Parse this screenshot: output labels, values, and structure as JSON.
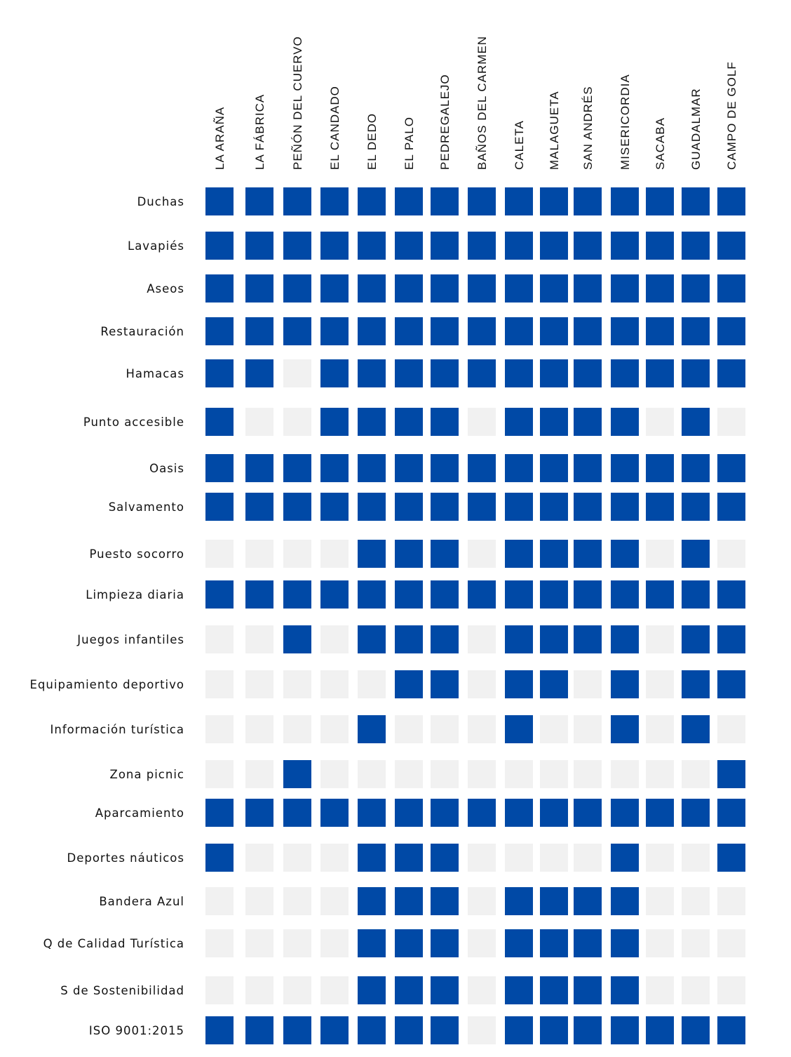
{
  "chart_data": {
    "type": "heatmap",
    "title": "",
    "columns": [
      "LA ARAÑA",
      "LA FÁBRICA",
      "PEÑÓN DEL CUERVO",
      "EL CANDADO",
      "EL DEDO",
      "EL PALO",
      "PEDREGALEJO",
      "BAÑOS DEL CARMEN",
      "CALETA",
      "MALAGUETA",
      "SAN ANDRÉS",
      "MISERICORDIA",
      "SACABA",
      "GUADALMAR",
      "CAMPO DE GOLF"
    ],
    "rows": [
      "Duchas",
      "Lavapiés",
      "Aseos",
      "Restauración",
      "Hamacas",
      "Punto accesible",
      "Oasis",
      "Salvamento",
      "Puesto socorro",
      "Limpieza diaria",
      "Juegos infantiles",
      "Equipamiento deportivo",
      "Información turística",
      "Zona picnic",
      "Aparcamiento",
      "Deportes náuticos",
      "Bandera Azul",
      "Q de Calidad Turística",
      "S de Sostenibilidad",
      "ISO 9001:2015"
    ],
    "values": [
      [
        1,
        1,
        1,
        1,
        1,
        1,
        1,
        1,
        1,
        1,
        1,
        1,
        1,
        1,
        1
      ],
      [
        1,
        1,
        1,
        1,
        1,
        1,
        1,
        1,
        1,
        1,
        1,
        1,
        1,
        1,
        1
      ],
      [
        1,
        1,
        1,
        1,
        1,
        1,
        1,
        1,
        1,
        1,
        1,
        1,
        1,
        1,
        1
      ],
      [
        1,
        1,
        1,
        1,
        1,
        1,
        1,
        1,
        1,
        1,
        1,
        1,
        1,
        1,
        1
      ],
      [
        1,
        1,
        0,
        1,
        1,
        1,
        1,
        1,
        1,
        1,
        1,
        1,
        1,
        1,
        1
      ],
      [
        1,
        0,
        0,
        1,
        1,
        1,
        1,
        0,
        1,
        1,
        1,
        1,
        0,
        1,
        0
      ],
      [
        1,
        1,
        1,
        1,
        1,
        1,
        1,
        1,
        1,
        1,
        1,
        1,
        1,
        1,
        1
      ],
      [
        1,
        1,
        1,
        1,
        1,
        1,
        1,
        1,
        1,
        1,
        1,
        1,
        1,
        1,
        1
      ],
      [
        0,
        0,
        0,
        0,
        1,
        1,
        1,
        0,
        1,
        1,
        1,
        1,
        0,
        1,
        0
      ],
      [
        1,
        1,
        1,
        1,
        1,
        1,
        1,
        1,
        1,
        1,
        1,
        1,
        1,
        1,
        1
      ],
      [
        0,
        0,
        1,
        0,
        1,
        1,
        1,
        0,
        1,
        1,
        1,
        1,
        0,
        1,
        1
      ],
      [
        0,
        0,
        0,
        0,
        0,
        1,
        1,
        0,
        1,
        1,
        0,
        1,
        0,
        1,
        1
      ],
      [
        0,
        0,
        0,
        0,
        1,
        0,
        0,
        0,
        1,
        0,
        0,
        1,
        0,
        1,
        0
      ],
      [
        0,
        0,
        1,
        0,
        0,
        0,
        0,
        0,
        0,
        0,
        0,
        0,
        0,
        0,
        1
      ],
      [
        1,
        1,
        1,
        1,
        1,
        1,
        1,
        1,
        1,
        1,
        1,
        1,
        1,
        1,
        1
      ],
      [
        1,
        0,
        0,
        0,
        1,
        1,
        1,
        0,
        0,
        0,
        0,
        1,
        0,
        0,
        1
      ],
      [
        0,
        0,
        0,
        0,
        1,
        1,
        1,
        0,
        1,
        1,
        1,
        1,
        0,
        0,
        0
      ],
      [
        0,
        0,
        0,
        0,
        1,
        1,
        1,
        0,
        1,
        1,
        1,
        1,
        0,
        0,
        0
      ],
      [
        0,
        0,
        0,
        0,
        1,
        1,
        1,
        0,
        1,
        1,
        1,
        1,
        0,
        0,
        0
      ],
      [
        1,
        1,
        1,
        1,
        1,
        1,
        1,
        0,
        1,
        1,
        1,
        1,
        1,
        1,
        1
      ]
    ],
    "colors": {
      "yes": "#0049a6",
      "no": "#f1f1f1"
    },
    "legend": "none",
    "grid": false
  }
}
